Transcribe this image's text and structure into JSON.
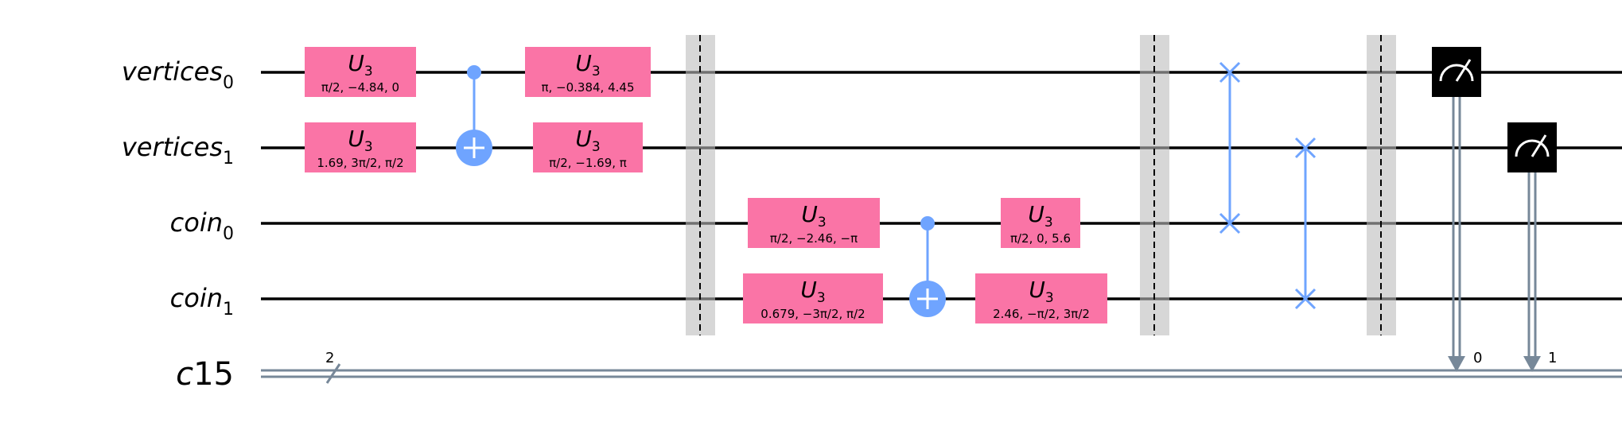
{
  "qubits": [
    {
      "name": "vertices",
      "sub": "0"
    },
    {
      "name": "vertices",
      "sub": "1"
    },
    {
      "name": "coin",
      "sub": "0"
    },
    {
      "name": "coin",
      "sub": "1"
    }
  ],
  "classical": {
    "name": "c",
    "suffix": "15",
    "width_label": "2",
    "bit_labels": [
      "0",
      "1"
    ]
  },
  "gates": [
    {
      "qubit": 0,
      "label": "U",
      "sub": "3",
      "params": "π/2, −4.84, 0"
    },
    {
      "qubit": 1,
      "label": "U",
      "sub": "3",
      "params": "1.69, 3π/2, π/2"
    },
    {
      "qubit": 0,
      "label": "U",
      "sub": "3",
      "params": "π, −0.384, 4.45"
    },
    {
      "qubit": 1,
      "label": "U",
      "sub": "3",
      "params": "π/2, −1.69, π"
    },
    {
      "qubit": 2,
      "label": "U",
      "sub": "3",
      "params": "π/2, −2.46, −π"
    },
    {
      "qubit": 3,
      "label": "U",
      "sub": "3",
      "params": "0.679, −3π/2, π/2"
    },
    {
      "qubit": 2,
      "label": "U",
      "sub": "3",
      "params": "π/2, 0, 5.6"
    },
    {
      "qubit": 3,
      "label": "U",
      "sub": "3",
      "params": "2.46, −π/2, 3π/2"
    }
  ],
  "cx": [
    {
      "control": 0,
      "target": 1
    },
    {
      "control": 2,
      "target": 3
    }
  ],
  "swaps": [
    {
      "a": 0,
      "b": 2
    },
    {
      "a": 1,
      "b": 3
    }
  ],
  "barriers": 3,
  "measures": [
    {
      "qubit": 0,
      "bit": "0"
    },
    {
      "qubit": 1,
      "bit": "1"
    }
  ],
  "colors": {
    "gate_fill": "#FA74A6",
    "control": "#6FA4FF",
    "barrier": "#BDBDBD",
    "measure": "#000000",
    "classical_wire": "#778899",
    "wire": "#000000"
  }
}
